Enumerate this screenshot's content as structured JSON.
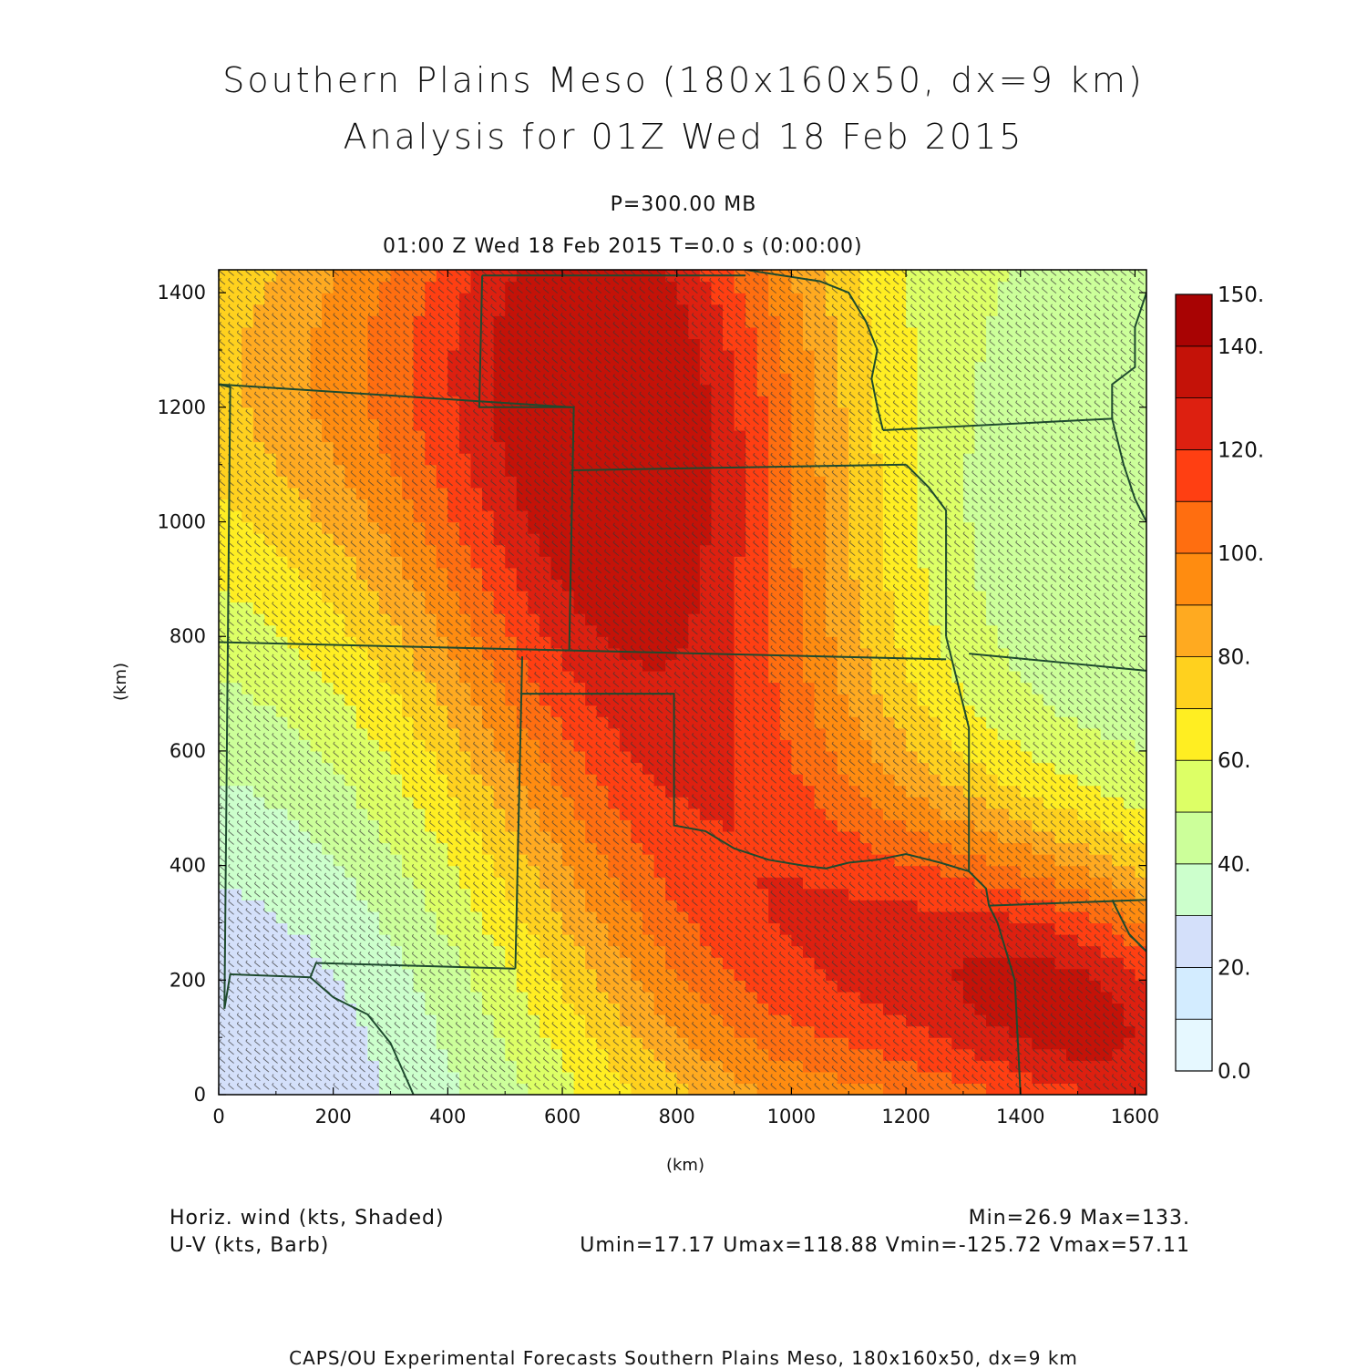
{
  "header": {
    "title_line1": "Southern Plains Meso (180x160x50, dx=9 km)",
    "title_line2": "Analysis for 01Z Wed 18 Feb 2015",
    "level": "P=300.00 MB",
    "time_line": "01:00 Z Wed 18 Feb 2015    T=0.0 s (0:00:00)"
  },
  "footer": {
    "field1": "Horiz. wind (kts, Shaded)",
    "field2": "U-V (kts, Barb)",
    "stats1": "Min=26.9 Max=133.",
    "stats2": "Umin=17.17 Umax=118.88 Vmin=-125.72 Vmax=57.11",
    "credit": "CAPS/OU Experimental Forecasts  Southern Plains Meso, 180x160x50, dx=9 km"
  },
  "chart_data": {
    "type": "heatmap",
    "xlabel": "(km)",
    "ylabel": "(km)",
    "xlim": [
      0,
      1620
    ],
    "ylim": [
      0,
      1440
    ],
    "x_ticks": [
      0,
      200,
      400,
      600,
      800,
      1000,
      1200,
      1400,
      1600
    ],
    "y_ticks": [
      0,
      200,
      400,
      600,
      800,
      1000,
      1200,
      1400
    ],
    "field": "Horiz. wind (kts)",
    "min": 26.9,
    "max": 133,
    "colorbar": {
      "levels": [
        0,
        10,
        20,
        30,
        40,
        50,
        60,
        70,
        80,
        90,
        100,
        110,
        120,
        130,
        140,
        150
      ],
      "labels": [
        "0.0",
        "20.",
        "40.",
        "60.",
        "80.",
        "100.",
        "120.",
        "140.",
        "150."
      ],
      "label_values": [
        0,
        20,
        40,
        60,
        80,
        100,
        120,
        140,
        150
      ],
      "colors": [
        "#e6f8ff",
        "#d3ecff",
        "#d4e0fa",
        "#ccffcc",
        "#ccff9a",
        "#ddff66",
        "#ffee22",
        "#ffd11e",
        "#ffaa20",
        "#ff8c10",
        "#ff6e10",
        "#ff3f12",
        "#dd2010",
        "#c41208",
        "#a80303"
      ]
    },
    "wind_maxima": [
      {
        "x": 730,
        "y": 1300,
        "speed": 133
      },
      {
        "x": 1520,
        "y": 150,
        "speed": 125
      }
    ],
    "wind_minima": [
      {
        "x": 20,
        "y": 20,
        "speed": 27
      }
    ]
  }
}
